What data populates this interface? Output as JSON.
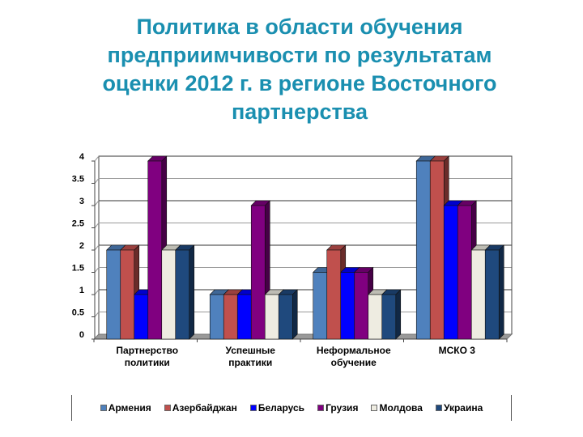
{
  "title": "Политика в области обучения предприимчивости по результатам оценки 2012 г. в регионе Восточного партнерства",
  "title_lines": [
    "Политика в области обучения",
    "предприимчивости по результатам",
    "оценки 2012 г. в регионе Восточного",
    "партнерства"
  ],
  "colors": {
    "title": "#1a8fb0",
    "Армения": "#4f81bd",
    "Азербайджан": "#c0504d",
    "Беларусь": "#0000ff",
    "Грузия": "#800080",
    "Молдова": "#eeece1",
    "Украина": "#1f497d"
  },
  "chart_data": {
    "type": "bar",
    "title": "Политика в области обучения предприимчивости по результатам оценки 2012 г. в регионе Восточного партнерства",
    "xlabel": "",
    "ylabel": "",
    "ylim": [
      0,
      4
    ],
    "yticks": [
      "0",
      "0.5",
      "1",
      "1.5",
      "2",
      "2.5",
      "3",
      "3.5",
      "4"
    ],
    "grid": true,
    "legend_position": "bottom",
    "categories": [
      "Партнерство политики",
      "Успешные практики",
      "Неформальное обучение",
      "МСКО 3"
    ],
    "category_lines": [
      [
        "Партнерство",
        "политики"
      ],
      [
        "Успешные",
        "практики"
      ],
      [
        "Неформальное",
        "обучение"
      ],
      [
        "МСКО 3"
      ]
    ],
    "series": [
      {
        "name": "Армения",
        "values": [
          2,
          1,
          1.5,
          4
        ]
      },
      {
        "name": "Азербайджан",
        "values": [
          2,
          1,
          2,
          4
        ]
      },
      {
        "name": "Беларусь",
        "values": [
          1,
          1,
          1.5,
          3
        ]
      },
      {
        "name": "Грузия",
        "values": [
          4,
          3,
          1.5,
          3
        ]
      },
      {
        "name": "Молдова",
        "values": [
          2,
          1,
          1,
          2
        ]
      },
      {
        "name": "Украина",
        "values": [
          2,
          1,
          1,
          2
        ]
      }
    ]
  },
  "legend": [
    {
      "label": "Армения"
    },
    {
      "label": "Азербайджан"
    },
    {
      "label": "Беларусь"
    },
    {
      "label": "Грузия"
    },
    {
      "label": "Молдова"
    },
    {
      "label": "Украина"
    }
  ]
}
